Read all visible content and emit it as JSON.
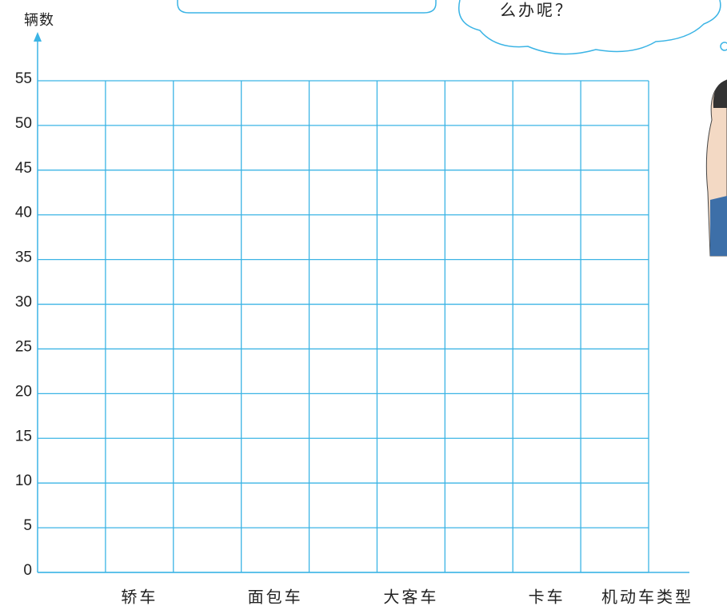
{
  "chart_data": {
    "type": "bar",
    "annotation": "么办呢？",
    "y_label": "辆数",
    "x_label": "机动车类型",
    "categories": [
      "轿车",
      "面包车",
      "大客车",
      "卡车"
    ],
    "color": "#3bb4e5",
    "ylim": [
      0,
      55
    ],
    "yticks": [
      0,
      5,
      10,
      15,
      20,
      25,
      30,
      35,
      40,
      45,
      50,
      55
    ],
    "grid": true
  }
}
